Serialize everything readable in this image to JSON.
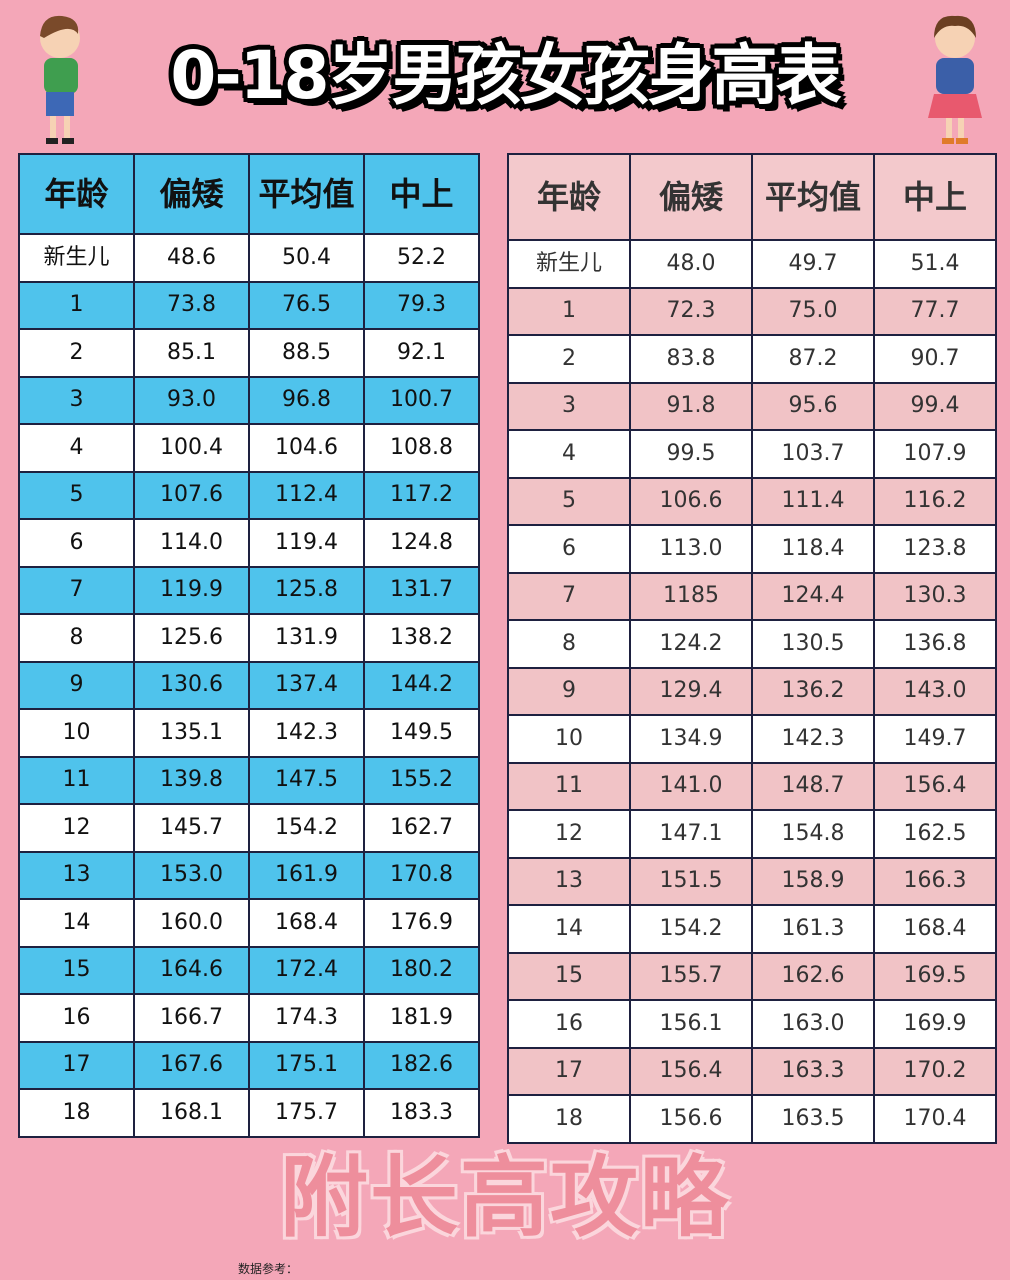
{
  "title": "0-18岁男孩女孩身高表",
  "watermark": "附长高攻略",
  "footer": "数据参考：",
  "colors": {
    "boys_accent": "#4fc3ec",
    "girls_accent": "#f1c3c6",
    "background": "#f4a7b8"
  },
  "boys": {
    "headers": [
      "年龄",
      "偏矮",
      "平均值",
      "中上"
    ],
    "rows": [
      [
        "新生儿",
        "48.6",
        "50.4",
        "52.2"
      ],
      [
        "1",
        "73.8",
        "76.5",
        "79.3"
      ],
      [
        "2",
        "85.1",
        "88.5",
        "92.1"
      ],
      [
        "3",
        "93.0",
        "96.8",
        "100.7"
      ],
      [
        "4",
        "100.4",
        "104.6",
        "108.8"
      ],
      [
        "5",
        "107.6",
        "112.4",
        "117.2"
      ],
      [
        "6",
        "114.0",
        "119.4",
        "124.8"
      ],
      [
        "7",
        "119.9",
        "125.8",
        "131.7"
      ],
      [
        "8",
        "125.6",
        "131.9",
        "138.2"
      ],
      [
        "9",
        "130.6",
        "137.4",
        "144.2"
      ],
      [
        "10",
        "135.1",
        "142.3",
        "149.5"
      ],
      [
        "11",
        "139.8",
        "147.5",
        "155.2"
      ],
      [
        "12",
        "145.7",
        "154.2",
        "162.7"
      ],
      [
        "13",
        "153.0",
        "161.9",
        "170.8"
      ],
      [
        "14",
        "160.0",
        "168.4",
        "176.9"
      ],
      [
        "15",
        "164.6",
        "172.4",
        "180.2"
      ],
      [
        "16",
        "166.7",
        "174.3",
        "181.9"
      ],
      [
        "17",
        "167.6",
        "175.1",
        "182.6"
      ],
      [
        "18",
        "168.1",
        "175.7",
        "183.3"
      ]
    ]
  },
  "girls": {
    "headers": [
      "年龄",
      "偏矮",
      "平均值",
      "中上"
    ],
    "rows": [
      [
        "新生儿",
        "48.0",
        "49.7",
        "51.4"
      ],
      [
        "1",
        "72.3",
        "75.0",
        "77.7"
      ],
      [
        "2",
        "83.8",
        "87.2",
        "90.7"
      ],
      [
        "3",
        "91.8",
        "95.6",
        "99.4"
      ],
      [
        "4",
        "99.5",
        "103.7",
        "107.9"
      ],
      [
        "5",
        "106.6",
        "111.4",
        "116.2"
      ],
      [
        "6",
        "113.0",
        "118.4",
        "123.8"
      ],
      [
        "7",
        "1185",
        "124.4",
        "130.3"
      ],
      [
        "8",
        "124.2",
        "130.5",
        "136.8"
      ],
      [
        "9",
        "129.4",
        "136.2",
        "143.0"
      ],
      [
        "10",
        "134.9",
        "142.3",
        "149.7"
      ],
      [
        "11",
        "141.0",
        "148.7",
        "156.4"
      ],
      [
        "12",
        "147.1",
        "154.8",
        "162.5"
      ],
      [
        "13",
        "151.5",
        "158.9",
        "166.3"
      ],
      [
        "14",
        "154.2",
        "161.3",
        "168.4"
      ],
      [
        "15",
        "155.7",
        "162.6",
        "169.5"
      ],
      [
        "16",
        "156.1",
        "163.0",
        "169.9"
      ],
      [
        "17",
        "156.4",
        "163.3",
        "170.2"
      ],
      [
        "18",
        "156.6",
        "163.5",
        "170.4"
      ]
    ]
  }
}
